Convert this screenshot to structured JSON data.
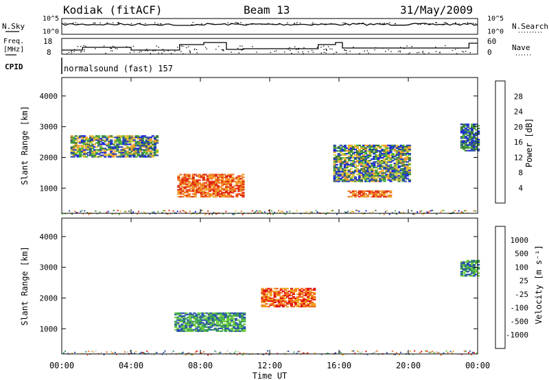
{
  "header": {
    "station": "Kodiak (fitACF)",
    "beam": "Beam 13",
    "date": "31/May/2009"
  },
  "noise_panel": {
    "left_label": "N.Sky",
    "right_label": "N.Search",
    "left_ticks": [
      "10^5",
      "10^0"
    ],
    "right_ticks": [
      "10^5",
      "10^0"
    ]
  },
  "freq_panel": {
    "left_label_lines": [
      "Freq.",
      "[MHz]"
    ],
    "right_label": "Nave",
    "left_ticks": [
      "18",
      "8"
    ],
    "right_ticks": [
      "60",
      "0"
    ],
    "cpid_label": "CPID",
    "cpid_text": "normalsound (fast) 157"
  },
  "colors": {
    "power_scale": [
      "#1a24e0",
      "#2d4ea8",
      "#3c7a3a",
      "#4cb23c",
      "#d8c83a",
      "#f0a030",
      "#f07820",
      "#e02a10"
    ],
    "velocity_scale": [
      "#e01010",
      "#f06a20",
      "#f0a020",
      "#c8c8c8",
      "#c8c8c8",
      "#6ccc3c",
      "#3a9a5a",
      "#2a50b0"
    ]
  },
  "chart_data": [
    {
      "type": "heatmap",
      "title": "Power",
      "xlabel": "",
      "ylabel": "Slant Range [km]",
      "xlim": [
        "00:00",
        "24:00"
      ],
      "ylim": [
        180,
        4600
      ],
      "yticks": [
        "1000",
        "2000",
        "3000",
        "4000"
      ],
      "colorbar": {
        "label": "Power [dB]",
        "ticks": [
          "4",
          "8",
          "12",
          "16",
          "20",
          "24",
          "28"
        ]
      },
      "regions": [
        {
          "start": "06:40",
          "end": "10:30",
          "range_min": 700,
          "range_max": 1450,
          "level": "high"
        },
        {
          "start": "00:30",
          "end": "05:30",
          "range_min": 2000,
          "range_max": 2700,
          "level": "medium"
        },
        {
          "start": "15:40",
          "end": "20:00",
          "range_min": 1200,
          "range_max": 2400,
          "level": "medium"
        },
        {
          "start": "16:30",
          "end": "19:00",
          "range_min": 700,
          "range_max": 900,
          "level": "high"
        },
        {
          "start": "23:00",
          "end": "24:00",
          "range_min": 2200,
          "range_max": 3100,
          "level": "low"
        }
      ]
    },
    {
      "type": "heatmap",
      "title": "Velocity",
      "xlabel": "Time UT",
      "ylabel": "Slant Range [km]",
      "xlim": [
        "00:00",
        "24:00"
      ],
      "ylim": [
        180,
        4600
      ],
      "yticks": [
        "1000",
        "2000",
        "3000",
        "4000"
      ],
      "xticks": [
        "00:00",
        "04:00",
        "08:00",
        "12:00",
        "16:00",
        "20:00",
        "00:00"
      ],
      "colorbar": {
        "label": "Velocity [m s⁻¹]",
        "ticks": [
          "1000",
          "500",
          "100",
          "25",
          "-25",
          "-100",
          "-500",
          "-1000"
        ]
      },
      "regions": [
        {
          "start": "06:30",
          "end": "10:30",
          "range_min": 900,
          "range_max": 1500,
          "level": "positive"
        },
        {
          "start": "11:30",
          "end": "14:30",
          "range_min": 1700,
          "range_max": 2300,
          "level": "negative"
        },
        {
          "start": "23:00",
          "end": "24:00",
          "range_min": 2700,
          "range_max": 3200,
          "level": "positive"
        }
      ]
    }
  ]
}
